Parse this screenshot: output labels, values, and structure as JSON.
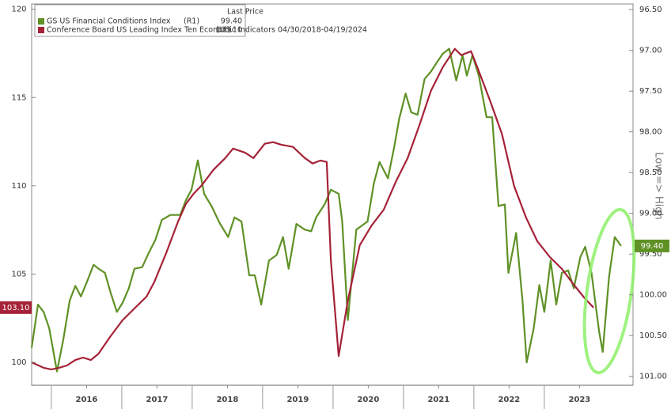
{
  "chart_data": {
    "type": "line",
    "legend_title": "Last Price",
    "y2_label": "Low => High",
    "xlim": [
      2015.72,
      2024.26
    ],
    "xticks": [
      {
        "value": 2016.5,
        "label": "2016"
      },
      {
        "value": 2017.5,
        "label": "2017"
      },
      {
        "value": 2018.5,
        "label": "2018"
      },
      {
        "value": 2019.5,
        "label": "2019"
      },
      {
        "value": 2020.5,
        "label": "2020"
      },
      {
        "value": 2021.5,
        "label": "2021"
      },
      {
        "value": 2022.5,
        "label": "2022"
      },
      {
        "value": 2023.5,
        "label": "2023"
      }
    ],
    "ylim": [
      98.7,
      120.3
    ],
    "yticks": [
      100,
      105,
      110,
      115,
      120
    ],
    "y2lim": [
      96.43,
      101.11
    ],
    "y2_inverted": true,
    "y2ticks": [
      {
        "value": 96.5,
        "label": "96.50"
      },
      {
        "value": 97,
        "label": "97.00"
      },
      {
        "value": 97.5,
        "label": "97.50"
      },
      {
        "value": 98,
        "label": "98.00"
      },
      {
        "value": 98.5,
        "label": "98.50"
      },
      {
        "value": 99,
        "label": "99.00"
      },
      {
        "value": 99.5,
        "label": "99.50"
      },
      {
        "value": 100,
        "label": "100.00"
      },
      {
        "value": 100.5,
        "label": "100.50"
      },
      {
        "value": 101,
        "label": "101.00"
      }
    ],
    "series": [
      {
        "name": "GS US Financial Conditions Index",
        "axis_tag": "(R1)",
        "last_label": "99.40",
        "axis": "y2",
        "color": "#5f9125",
        "x": [
          2015.72,
          2015.81,
          2015.89,
          2015.97,
          2016.08,
          2016.17,
          2016.26,
          2016.34,
          2016.42,
          2016.51,
          2016.6,
          2016.67,
          2016.76,
          2016.84,
          2016.93,
          2017.01,
          2017.1,
          2017.18,
          2017.29,
          2017.38,
          2017.48,
          2017.57,
          2017.69,
          2017.83,
          2017.91,
          2017.99,
          2018.08,
          2018.17,
          2018.28,
          2018.39,
          2018.51,
          2018.6,
          2018.7,
          2018.81,
          2018.89,
          2018.98,
          2019.09,
          2019.2,
          2019.29,
          2019.37,
          2019.48,
          2019.6,
          2019.69,
          2019.76,
          2019.88,
          2019.97,
          2020.08,
          2020.13,
          2020.21,
          2020.33,
          2020.49,
          2020.58,
          2020.66,
          2020.78,
          2020.87,
          2020.94,
          2021.03,
          2021.11,
          2021.2,
          2021.3,
          2021.39,
          2021.48,
          2021.56,
          2021.65,
          2021.75,
          2021.84,
          2021.9,
          2021.98,
          2022.07,
          2022.18,
          2022.26,
          2022.35,
          2022.44,
          2022.49,
          2022.6,
          2022.69,
          2022.75,
          2022.85,
          2022.93,
          2023.0,
          2023.09,
          2023.17,
          2023.25,
          2023.34,
          2023.42,
          2023.51,
          2023.58,
          2023.67,
          2023.78,
          2023.83,
          2023.92,
          2024.0,
          2024.09
        ],
        "values": [
          100.65,
          100.12,
          100.21,
          100.41,
          100.94,
          100.55,
          100.07,
          99.89,
          100.02,
          99.83,
          99.63,
          99.68,
          99.73,
          99.97,
          100.21,
          100.1,
          99.92,
          99.68,
          99.66,
          99.49,
          99.32,
          99.08,
          99.02,
          99.02,
          98.84,
          98.71,
          98.35,
          98.76,
          98.92,
          99.12,
          99.29,
          99.05,
          99.1,
          99.76,
          99.76,
          100.12,
          99.58,
          99.51,
          99.29,
          99.68,
          99.13,
          99.2,
          99.22,
          99.05,
          98.89,
          98.71,
          98.76,
          99.1,
          100.31,
          99.2,
          99.1,
          98.63,
          98.37,
          98.57,
          98.18,
          97.84,
          97.53,
          97.76,
          97.79,
          97.35,
          97.26,
          97.14,
          97.04,
          96.98,
          97.37,
          97.06,
          97.31,
          97.06,
          97.31,
          97.82,
          97.82,
          98.91,
          98.89,
          99.73,
          99.24,
          100.07,
          100.83,
          100.41,
          99.88,
          100.21,
          99.58,
          100.12,
          99.73,
          99.7,
          99.92,
          99.54,
          99.41,
          99.73,
          100.46,
          100.7,
          99.78,
          99.29,
          99.4
        ]
      },
      {
        "name": "Conference Board US Leading Index Ten Economic Indicators 04/30/2018-04/19/2024",
        "axis_tag": "(L1)",
        "last_label": "103.10",
        "axis": "y",
        "color": "#a52238",
        "x": [
          2015.72,
          2015.89,
          2016.0,
          2016.11,
          2016.22,
          2016.34,
          2016.45,
          2016.56,
          2016.67,
          2016.84,
          2017.01,
          2017.18,
          2017.35,
          2017.46,
          2017.63,
          2017.8,
          2017.91,
          2018.02,
          2018.13,
          2018.3,
          2018.47,
          2018.58,
          2018.75,
          2018.87,
          2019.03,
          2019.15,
          2019.26,
          2019.43,
          2019.6,
          2019.71,
          2019.82,
          2019.91,
          2019.97,
          2020.08,
          2020.21,
          2020.38,
          2020.55,
          2020.72,
          2020.89,
          2021.06,
          2021.22,
          2021.39,
          2021.56,
          2021.73,
          2021.82,
          2021.96,
          2022.07,
          2022.24,
          2022.4,
          2022.57,
          2022.74,
          2022.9,
          2023.08,
          2023.25,
          2023.42,
          2023.58,
          2023.7
        ],
        "values": [
          100.0,
          99.69,
          99.6,
          99.69,
          99.82,
          100.13,
          100.27,
          100.13,
          100.49,
          101.48,
          102.38,
          103.05,
          103.72,
          104.53,
          106.19,
          107.98,
          108.97,
          109.55,
          110.0,
          110.9,
          111.57,
          112.11,
          111.88,
          111.57,
          112.38,
          112.47,
          112.33,
          112.2,
          111.57,
          111.26,
          111.43,
          111.35,
          105.74,
          100.36,
          103.5,
          106.64,
          107.76,
          108.65,
          110.22,
          111.57,
          113.36,
          115.38,
          116.73,
          117.76,
          117.4,
          117.62,
          116.5,
          114.71,
          112.91,
          110.0,
          108.21,
          106.86,
          105.96,
          105.29,
          104.39,
          103.6,
          103.1
        ]
      }
    ]
  }
}
